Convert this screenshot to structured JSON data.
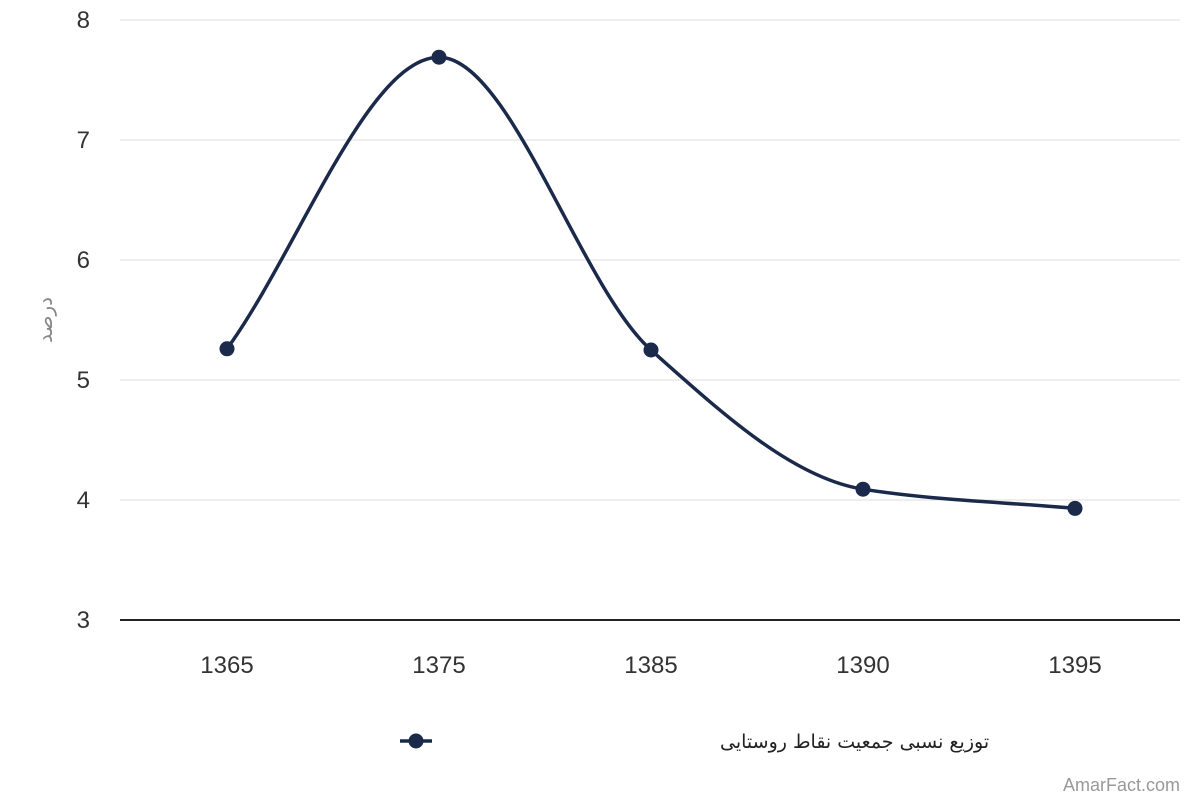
{
  "chart_data": {
    "type": "line",
    "categories": [
      "1365",
      "1375",
      "1385",
      "1390",
      "1395"
    ],
    "series": [
      {
        "name": "توزیع نسبی جمعیت نقاط روستایی",
        "values": [
          5.26,
          7.69,
          5.25,
          4.09,
          3.93
        ],
        "color": "#1b2a4a"
      }
    ],
    "yticks": [
      "3",
      "4",
      "5",
      "6",
      "7",
      "8"
    ],
    "ylim": [
      3,
      8
    ],
    "ylabel": "درصد",
    "xlabel": "",
    "title": "",
    "grid": true,
    "legend": "bottom-center",
    "smooth": true
  },
  "watermark": "AmarFact.com",
  "colors": {
    "grid": "#dddddd",
    "axis": "#222222",
    "series": "#1b2a4a"
  }
}
